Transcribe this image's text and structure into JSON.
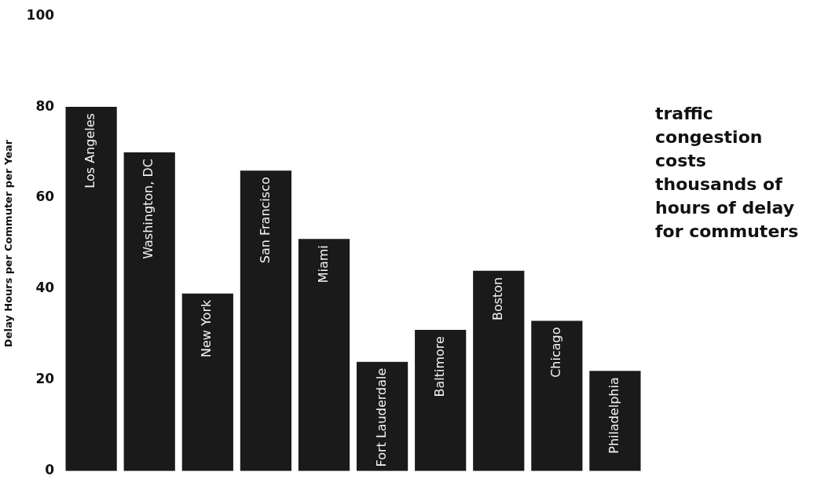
{
  "chart_data": {
    "type": "bar",
    "ylabel": "Delay Hours per Commuter per Year",
    "categories": [
      "Los Angeles",
      "Washington, DC",
      "New York",
      "San Francisco",
      "Miami",
      "Fort Lauderdale",
      "Baltimore",
      "Boston",
      "Chicago",
      "Philadelphia"
    ],
    "values": [
      80,
      70,
      39,
      66,
      51,
      24,
      31,
      44,
      33,
      22
    ],
    "color": "#1a1a1a",
    "ylim": [
      0,
      100
    ],
    "yticks": [
      0,
      20,
      40,
      60,
      80,
      100
    ],
    "grid": false,
    "legend": false,
    "annotations": [
      "traffic congestion costs thousands of hours of delay for commuters"
    ]
  }
}
